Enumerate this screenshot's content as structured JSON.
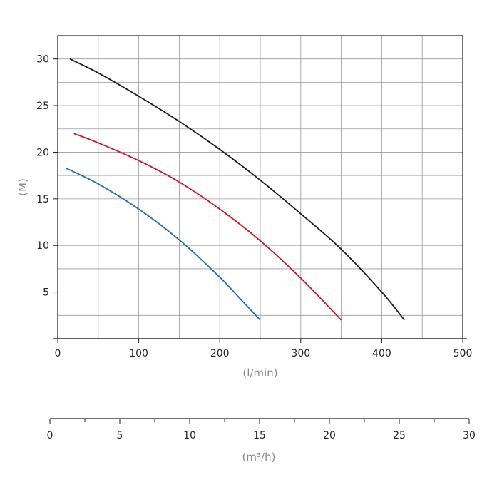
{
  "chart_data": {
    "type": "line",
    "xlabel": "(l/min)",
    "ylabel": "(M)",
    "xlim": [
      0,
      500
    ],
    "ylim": [
      0,
      32.5
    ],
    "x_ticks": [
      0,
      100,
      200,
      300,
      400,
      500
    ],
    "y_ticks": [
      5,
      10,
      15,
      20,
      25,
      30
    ],
    "grid": true,
    "series": [
      {
        "color": "#1a1a1a",
        "points": [
          [
            15,
            30
          ],
          [
            50,
            28.5
          ],
          [
            100,
            26
          ],
          [
            150,
            23.3
          ],
          [
            200,
            20.3
          ],
          [
            250,
            17
          ],
          [
            300,
            13.4
          ],
          [
            350,
            9.6
          ],
          [
            400,
            5
          ],
          [
            428,
            2
          ]
        ]
      },
      {
        "color": "#d7101e",
        "points": [
          [
            20,
            22
          ],
          [
            50,
            21
          ],
          [
            100,
            19.1
          ],
          [
            150,
            16.8
          ],
          [
            200,
            13.9
          ],
          [
            250,
            10.5
          ],
          [
            300,
            6.5
          ],
          [
            350,
            2
          ]
        ]
      },
      {
        "color": "#1f6fb5",
        "points": [
          [
            10,
            18.3
          ],
          [
            50,
            16.6
          ],
          [
            100,
            13.9
          ],
          [
            150,
            10.6
          ],
          [
            200,
            6.6
          ],
          [
            225,
            4.3
          ],
          [
            250,
            2
          ]
        ]
      }
    ],
    "secondary_x_axis": {
      "xlabel": "(m³/h)",
      "xlim": [
        0,
        30
      ],
      "x_ticks": [
        0,
        5,
        10,
        15,
        20,
        25,
        30
      ]
    }
  }
}
